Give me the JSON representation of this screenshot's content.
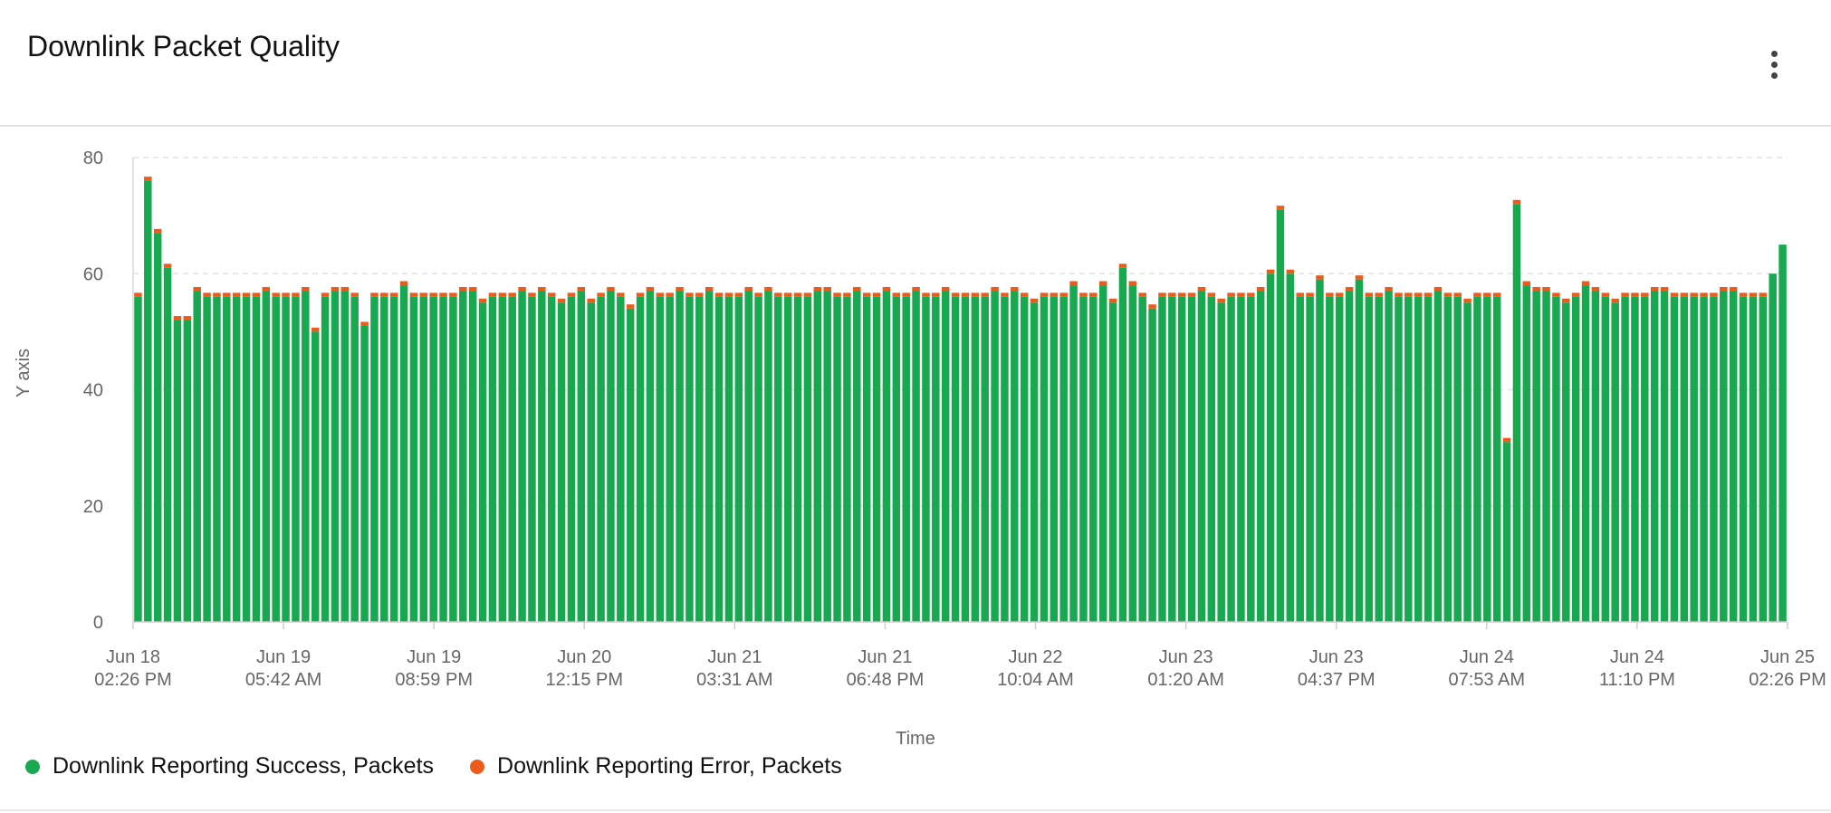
{
  "title": "Downlink Packet Quality",
  "colors": {
    "success": "#18a84f",
    "error": "#ea5b1c"
  },
  "legend": [
    {
      "label": "Downlink Reporting Success, Packets",
      "color": "#18a84f"
    },
    {
      "label": "Downlink Reporting Error, Packets",
      "color": "#ea5b1c"
    }
  ],
  "chart_data": {
    "type": "bar",
    "stacked": true,
    "xlabel": "Time",
    "ylabel": "Y axis",
    "ylim": [
      0,
      80
    ],
    "yticks": [
      0,
      20,
      40,
      60,
      80
    ],
    "grid": true,
    "legend_position": "bottom-left",
    "x_ticks": [
      [
        "Jun 18",
        "02:26 PM"
      ],
      [
        "Jun 19",
        "05:42 AM"
      ],
      [
        "Jun 19",
        "08:59 PM"
      ],
      [
        "Jun 20",
        "12:15 PM"
      ],
      [
        "Jun 21",
        "03:31 AM"
      ],
      [
        "Jun 21",
        "06:48 PM"
      ],
      [
        "Jun 22",
        "10:04 AM"
      ],
      [
        "Jun 23",
        "01:20 AM"
      ],
      [
        "Jun 23",
        "04:37 PM"
      ],
      [
        "Jun 24",
        "07:53 AM"
      ],
      [
        "Jun 24",
        "11:10 PM"
      ],
      [
        "Jun 25",
        "02:26 PM"
      ]
    ],
    "series": [
      {
        "name": "Downlink Reporting Success, Packets",
        "values": [
          56,
          76,
          67,
          61,
          52,
          52,
          57,
          56,
          56,
          56,
          56,
          56,
          56,
          57,
          56,
          56,
          56,
          57,
          50,
          56,
          57,
          57,
          56,
          51,
          56,
          56,
          56,
          58,
          56,
          56,
          56,
          56,
          56,
          57,
          57,
          55,
          56,
          56,
          56,
          57,
          56,
          57,
          56,
          55,
          56,
          57,
          55,
          56,
          57,
          56,
          54,
          56,
          57,
          56,
          56,
          57,
          56,
          56,
          57,
          56,
          56,
          56,
          57,
          56,
          57,
          56,
          56,
          56,
          56,
          57,
          57,
          56,
          56,
          57,
          56,
          56,
          57,
          56,
          56,
          57,
          56,
          56,
          57,
          56,
          56,
          56,
          56,
          57,
          56,
          57,
          56,
          55,
          56,
          56,
          56,
          58,
          56,
          56,
          58,
          55,
          61,
          58,
          56,
          54,
          56,
          56,
          56,
          56,
          57,
          56,
          55,
          56,
          56,
          56,
          57,
          60,
          71,
          60,
          56,
          56,
          59,
          56,
          56,
          57,
          59,
          56,
          56,
          57,
          56,
          56,
          56,
          56,
          57,
          56,
          56,
          55,
          56,
          56,
          56,
          31,
          72,
          58,
          57,
          57,
          56,
          55,
          56,
          58,
          57,
          56,
          55,
          56,
          56,
          56,
          57,
          57,
          56,
          56,
          56,
          56,
          56,
          57,
          57,
          56,
          56,
          56,
          60,
          65
        ]
      },
      {
        "name": "Downlink Reporting Error, Packets",
        "values": [
          0.7,
          0.7,
          0.7,
          0.7,
          0.7,
          0.7,
          0.7,
          0.7,
          0.7,
          0.7,
          0.7,
          0.7,
          0.7,
          0.7,
          0.7,
          0.7,
          0.7,
          0.7,
          0.7,
          0.7,
          0.7,
          0.7,
          0.7,
          0.7,
          0.7,
          0.7,
          0.7,
          0.7,
          0.7,
          0.7,
          0.7,
          0.7,
          0.7,
          0.7,
          0.7,
          0.7,
          0.7,
          0.7,
          0.7,
          0.7,
          0.7,
          0.7,
          0.7,
          0.7,
          0.7,
          0.7,
          0.7,
          0.7,
          0.7,
          0.7,
          0.7,
          0.7,
          0.7,
          0.7,
          0.7,
          0.7,
          0.7,
          0.7,
          0.7,
          0.7,
          0.7,
          0.7,
          0.7,
          0.7,
          0.7,
          0.7,
          0.7,
          0.7,
          0.7,
          0.7,
          0.7,
          0.7,
          0.7,
          0.7,
          0.7,
          0.7,
          0.7,
          0.7,
          0.7,
          0.7,
          0.7,
          0.7,
          0.7,
          0.7,
          0.7,
          0.7,
          0.7,
          0.7,
          0.7,
          0.7,
          0.7,
          0.7,
          0.7,
          0.7,
          0.7,
          0.7,
          0.7,
          0.7,
          0.7,
          0.7,
          0.7,
          0.7,
          0.7,
          0.7,
          0.7,
          0.7,
          0.7,
          0.7,
          0.7,
          0.7,
          0.7,
          0.7,
          0.7,
          0.7,
          0.7,
          0.7,
          0.7,
          0.7,
          0.7,
          0.7,
          0.7,
          0.7,
          0.7,
          0.7,
          0.7,
          0.7,
          0.7,
          0.7,
          0.7,
          0.7,
          0.7,
          0.7,
          0.7,
          0.7,
          0.7,
          0.7,
          0.7,
          0.7,
          0.7,
          0.7,
          0.7,
          0.7,
          0.7,
          0.7,
          0.7,
          0.7,
          0.7,
          0.7,
          0.7,
          0.7,
          0.7,
          0.7,
          0.7,
          0.7,
          0.7,
          0.7,
          0.7,
          0.7,
          0.7,
          0.7,
          0.7,
          0.7,
          0.7,
          0.7,
          0.7,
          0.7
        ]
      }
    ]
  }
}
